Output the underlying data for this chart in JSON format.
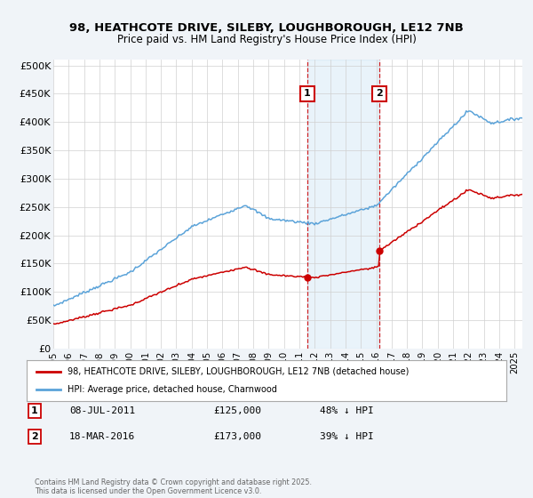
{
  "title1": "98, HEATHCOTE DRIVE, SILEBY, LOUGHBOROUGH, LE12 7NB",
  "title2": "Price paid vs. HM Land Registry's House Price Index (HPI)",
  "ylabel_ticks": [
    "£0",
    "£50K",
    "£100K",
    "£150K",
    "£200K",
    "£250K",
    "£300K",
    "£350K",
    "£400K",
    "£450K",
    "£500K"
  ],
  "ytick_values": [
    0,
    50000,
    100000,
    150000,
    200000,
    250000,
    300000,
    350000,
    400000,
    450000,
    500000
  ],
  "hpi_color": "#5ba3d9",
  "price_color": "#cc0000",
  "marker1_date": 2011.52,
  "marker1_price": 125000,
  "marker2_date": 2016.21,
  "marker2_price": 173000,
  "legend_line1": "98, HEATHCOTE DRIVE, SILEBY, LOUGHBOROUGH, LE12 7NB (detached house)",
  "legend_line2": "HPI: Average price, detached house, Charnwood",
  "footer": "Contains HM Land Registry data © Crown copyright and database right 2025.\nThis data is licensed under the Open Government Licence v3.0.",
  "background_color": "#f0f4f8",
  "plot_bg_color": "#ffffff",
  "ann1_date": "08-JUL-2011",
  "ann1_price": "£125,000",
  "ann1_pct": "48% ↓ HPI",
  "ann2_date": "18-MAR-2016",
  "ann2_price": "£173,000",
  "ann2_pct": "39% ↓ HPI"
}
